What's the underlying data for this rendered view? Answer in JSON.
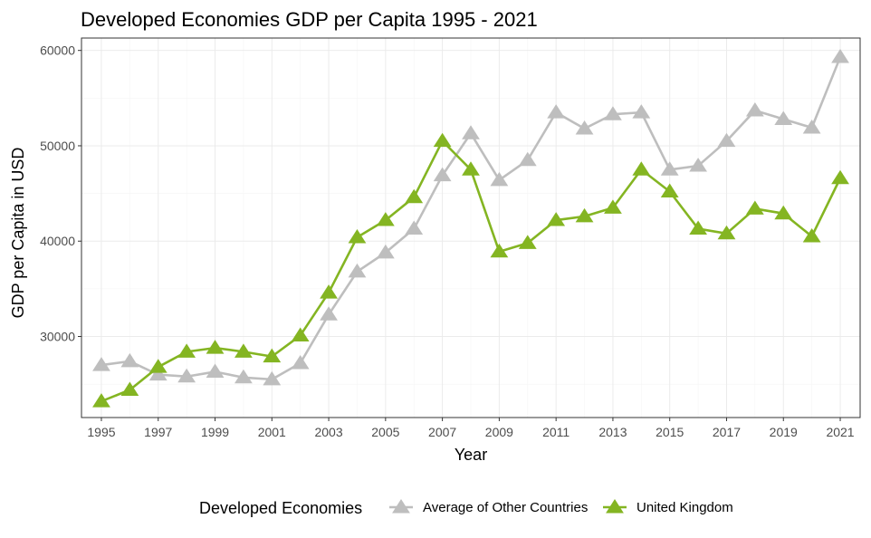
{
  "chart_data": {
    "type": "line",
    "title": "Developed Economies GDP per Capita 1995 - 2021",
    "xlabel": "Year",
    "ylabel": "GDP per Capita in USD",
    "xlim": [
      1994.3,
      2021.7
    ],
    "ylim": [
      21500,
      61300
    ],
    "x_ticks": [
      1995,
      1997,
      1999,
      2001,
      2003,
      2005,
      2007,
      2009,
      2011,
      2013,
      2015,
      2017,
      2019,
      2021
    ],
    "y_ticks": [
      30000,
      40000,
      50000,
      60000
    ],
    "grid": true,
    "legend": {
      "title": "Developed Economies",
      "position": "bottom"
    },
    "x": [
      1995,
      1996,
      1997,
      1998,
      1999,
      2000,
      2001,
      2002,
      2003,
      2004,
      2005,
      2006,
      2007,
      2008,
      2009,
      2010,
      2011,
      2012,
      2013,
      2014,
      2015,
      2016,
      2017,
      2018,
      2019,
      2020,
      2021
    ],
    "series": [
      {
        "name": "Average of Other Countries",
        "color": "#bebebe",
        "marker": "triangle",
        "values": [
          27000,
          27400,
          26000,
          25800,
          26300,
          25700,
          25500,
          27200,
          32300,
          36800,
          38800,
          41300,
          46900,
          51300,
          46400,
          48500,
          53500,
          51800,
          53300,
          53500,
          47500,
          47900,
          50500,
          53700,
          52800,
          51900,
          59300
        ]
      },
      {
        "name": "United Kingdom",
        "color": "#84b522",
        "marker": "triangle",
        "values": [
          23200,
          24400,
          26800,
          28400,
          28800,
          28400,
          27900,
          30100,
          34600,
          40400,
          42200,
          44600,
          50500,
          47500,
          38900,
          39800,
          42200,
          42600,
          43500,
          47500,
          45200,
          41300,
          40800,
          43400,
          42900,
          40500,
          46600
        ]
      }
    ]
  }
}
